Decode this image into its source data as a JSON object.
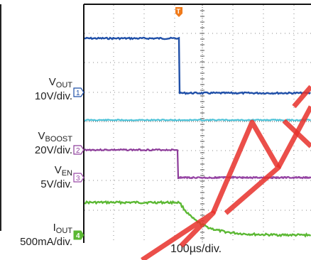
{
  "chart_data": {
    "type": "line",
    "time_scale": "100µs/div.",
    "channels": [
      {
        "id": "1",
        "name": "VOUT",
        "main": "V",
        "sub": "OUT",
        "scale": "10V/div.",
        "color": "#1f4fa8"
      },
      {
        "id": "2",
        "name": "VBOOST",
        "main": "V",
        "sub": "BOOST",
        "scale": "20V/div.",
        "color": "#8d3c9a"
      },
      {
        "id": "3",
        "name": "VEN",
        "main": "V",
        "sub": "EN",
        "scale": "5V/div.",
        "color": "#9a4aa8"
      },
      {
        "id": "4",
        "name": "IOUT",
        "main": "I",
        "sub": "OUT",
        "scale": "500mA/div.",
        "color": "#5bb833"
      }
    ],
    "trigger_marker": "T",
    "grid": true,
    "extra_trace_color": "#4ec3d8",
    "watermark_color": "#e8302a"
  }
}
